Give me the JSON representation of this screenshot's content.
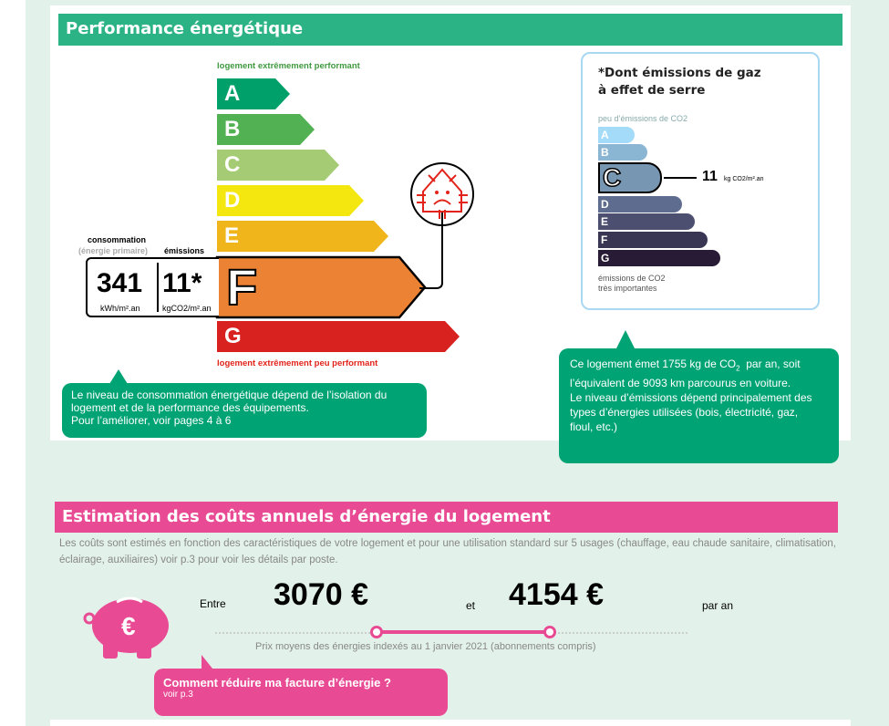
{
  "performance": {
    "title": "Performance énergétique",
    "top_label": "logement extrêmement performant",
    "bottom_label": "logement extrêmement peu performant",
    "classes": [
      {
        "letter": "A",
        "color": "#00a06a"
      },
      {
        "letter": "B",
        "color": "#52b153"
      },
      {
        "letter": "C",
        "color": "#a5cc74"
      },
      {
        "letter": "D",
        "color": "#f3e70f"
      },
      {
        "letter": "E",
        "color": "#f0b51a"
      },
      {
        "letter": "F",
        "color": "#eb8234"
      },
      {
        "letter": "G",
        "color": "#d7221f"
      }
    ],
    "current_class": "F",
    "consumption_label": "consommation",
    "consumption_sublabel": "(énergie primaire)",
    "emissions_label": "émissions",
    "consumption_value": "341",
    "consumption_unit": "kWh/m².an",
    "emissions_value": "11*",
    "emissions_unit": "kgCO2/m².an",
    "icon": "passoire-house-sad-icon",
    "info": [
      "Le niveau de consommation énergétique dépend de l’isolation du",
      "logement et de la performance des équipements.",
      "Pour l’améliorer, voir pages 4 à 6"
    ]
  },
  "ges": {
    "title_line1": "*Dont émissions de gaz",
    "title_line2": "à effet de serre",
    "top_label": "peu d’émissions de CO2",
    "bottom_label_1": "émissions de CO2",
    "bottom_label_2": "très importantes",
    "classes": [
      {
        "letter": "A",
        "color": "#a4dbf8"
      },
      {
        "letter": "B",
        "color": "#8ab5d3"
      },
      {
        "letter": "C",
        "color": "#7796b1"
      },
      {
        "letter": "D",
        "color": "#5e6d8f"
      },
      {
        "letter": "E",
        "color": "#4c4f70"
      },
      {
        "letter": "F",
        "color": "#393653"
      },
      {
        "letter": "G",
        "color": "#281b35"
      }
    ],
    "current_class": "C",
    "value": "11",
    "unit": "kg CO2/m².an",
    "info_a": "Ce logement émet 1755 kg de CO",
    "info_sub": "2",
    "info_b": "  par an, soit",
    "info_lines": [
      "l’équivalent de 9093  km parcourus en voiture.",
      "Le niveau d’émissions dépend principalement des",
      "types d’énergies utilisées (bois, électricité, gaz,",
      "fioul, etc.)"
    ]
  },
  "costs": {
    "title": "Estimation des coûts annuels d’énergie du logement",
    "description": "Les coûts sont estimés en fonction des caractéristiques de votre logement et pour une utilisation standard sur 5 usages (chauffage, eau chaude sanitaire, climatisation, éclairage, auxiliaires) voir p.3 pour voir les détails par poste.",
    "between": "Entre",
    "min": "3070 €",
    "and": "et",
    "max": "4154 €",
    "per_year": "par an",
    "note": "Prix moyens des énergies indexés au 1 janvier 2021 (abonnements compris)",
    "tip_title": "Comment réduire ma facture d’énergie ?",
    "tip_link": "voir p.3",
    "icon": "piggy-bank-euro-icon"
  }
}
